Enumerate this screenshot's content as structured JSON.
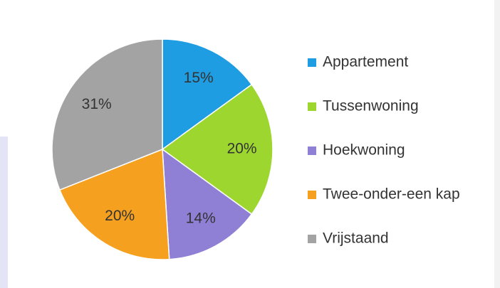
{
  "chart_data": {
    "type": "pie",
    "categories": [
      "Appartement",
      "Tussenwoning",
      "Hoekwoning",
      "Twee-onder-een kap",
      "Vrijstaand"
    ],
    "values": [
      15,
      20,
      14,
      20,
      31
    ],
    "value_labels": [
      "15%",
      "20%",
      "14%",
      "20%",
      "31%"
    ],
    "colors": [
      "#1f9de2",
      "#9dd62f",
      "#8f80d6",
      "#f6a01f",
      "#a3a3a3"
    ],
    "legend": "right"
  }
}
